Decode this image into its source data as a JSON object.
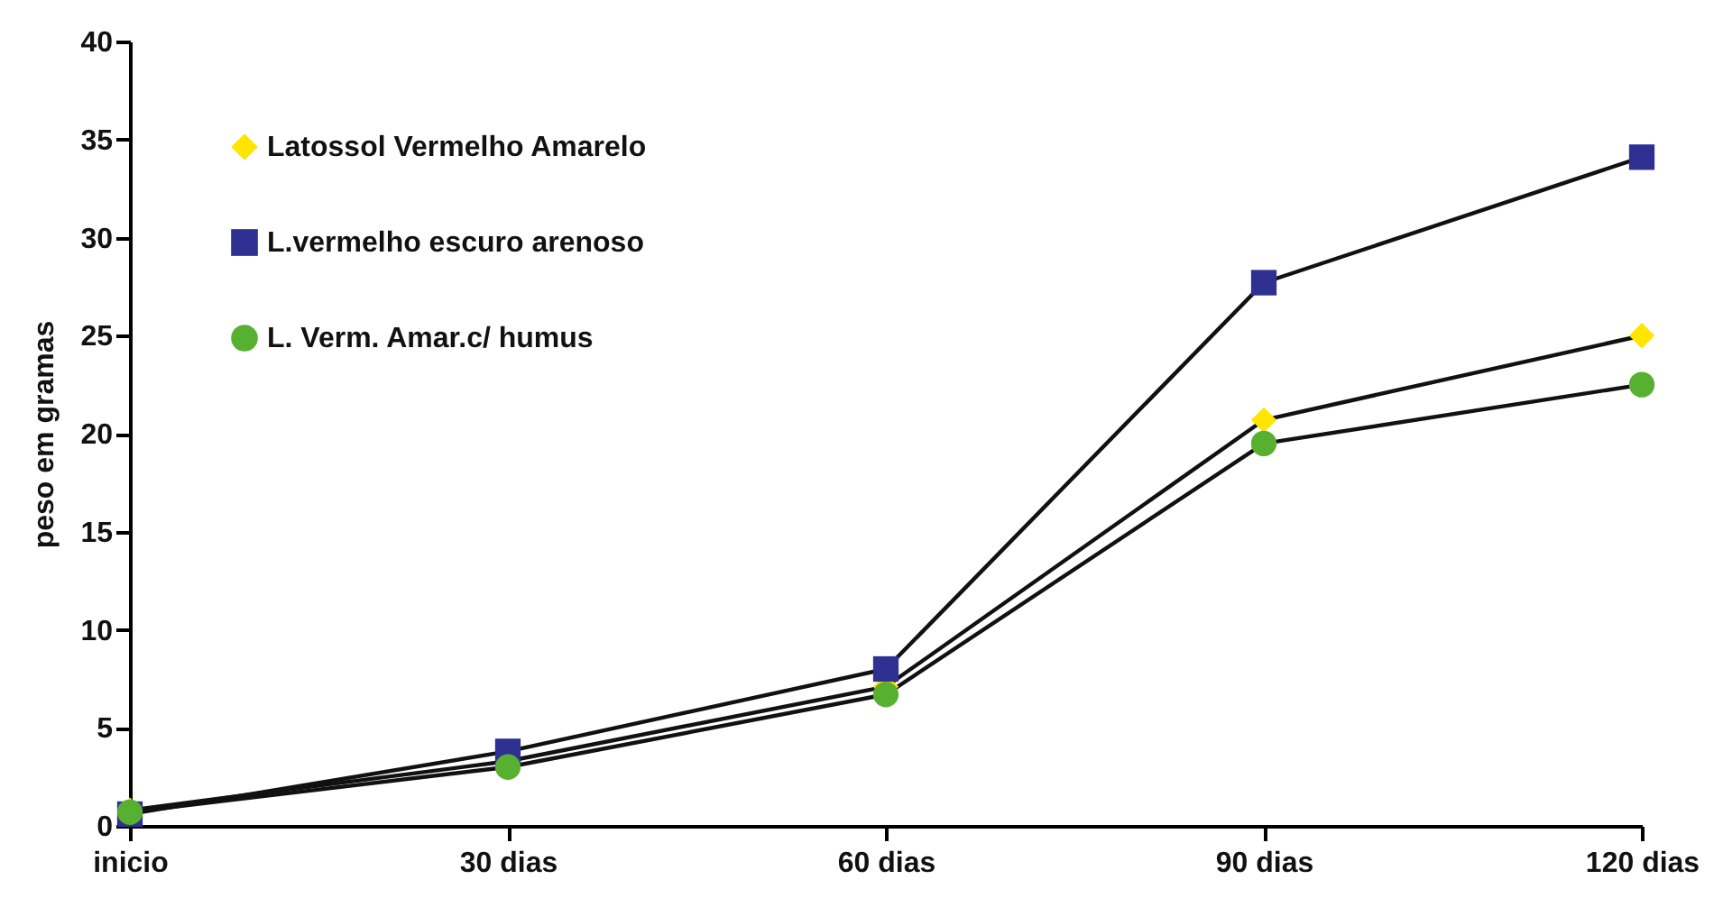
{
  "chart_data": {
    "type": "line",
    "ylabel": "peso em gramas",
    "categories": [
      "inicio",
      "30 dias",
      "60 dias",
      "90 dias",
      "120 dias"
    ],
    "series": [
      {
        "name": "Latossol Vermelho Amarelo",
        "color": "#ffe500",
        "marker": "diamond",
        "values": [
          0.8,
          3.3,
          7.1,
          20.7,
          25.0
        ]
      },
      {
        "name": "L.vermelho escuro arenoso",
        "color": "#2e3192",
        "marker": "square",
        "values": [
          0.6,
          3.8,
          8.0,
          27.7,
          34.1
        ]
      },
      {
        "name": "L. Verm. Amar.c/ humus",
        "color": "#58b030",
        "marker": "circle",
        "values": [
          0.7,
          3.0,
          6.7,
          19.5,
          22.5
        ]
      }
    ],
    "ylim": [
      0,
      40
    ],
    "yticks": [
      0,
      5,
      10,
      15,
      20,
      25,
      30,
      35,
      40
    ],
    "grid": false,
    "legend": "top left",
    "line_style": "solid"
  }
}
